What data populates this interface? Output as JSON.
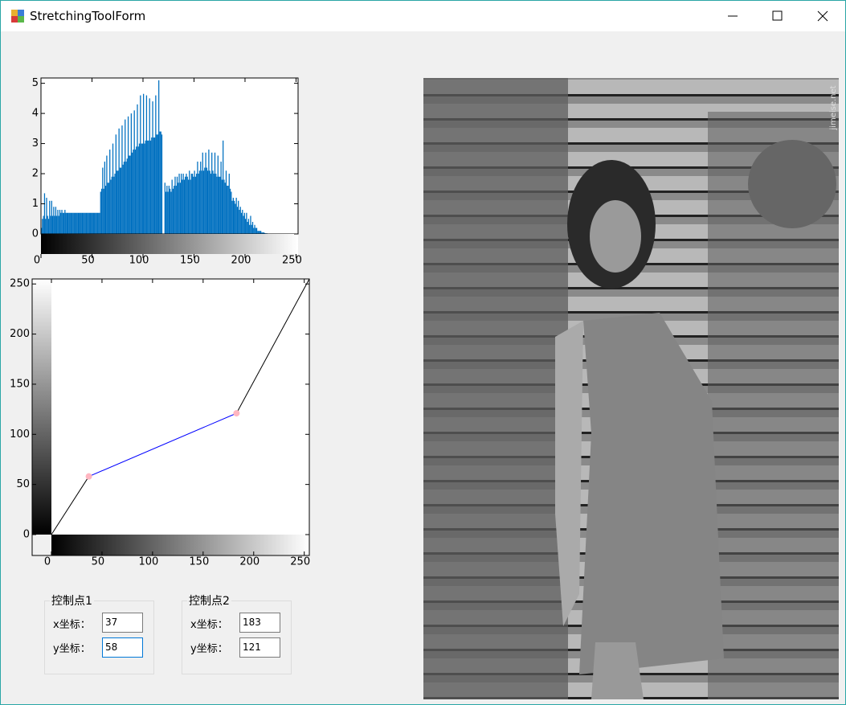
{
  "window": {
    "title": "StretchingToolForm"
  },
  "chart_data": [
    {
      "type": "bar",
      "color": "#0070c0",
      "xlim": [
        0,
        252
      ],
      "ylim": [
        0,
        5.15
      ],
      "xticks": [
        0,
        50,
        100,
        150,
        200,
        250
      ],
      "yticks": [
        0,
        1,
        2,
        3,
        4,
        5
      ],
      "x": [
        0,
        1,
        2,
        3,
        4,
        5,
        6,
        7,
        8,
        9,
        10,
        11,
        12,
        13,
        14,
        15,
        16,
        17,
        18,
        19,
        20,
        21,
        22,
        23,
        24,
        25,
        26,
        27,
        28,
        29,
        30,
        31,
        32,
        33,
        34,
        35,
        36,
        37,
        38,
        39,
        40,
        41,
        42,
        43,
        44,
        45,
        46,
        47,
        48,
        49,
        50,
        51,
        52,
        53,
        54,
        55,
        56,
        57,
        58,
        59,
        60,
        61,
        62,
        63,
        64,
        65,
        66,
        67,
        68,
        69,
        70,
        71,
        72,
        73,
        74,
        75,
        76,
        77,
        78,
        79,
        80,
        81,
        82,
        83,
        84,
        85,
        86,
        87,
        88,
        89,
        90,
        91,
        92,
        93,
        94,
        95,
        96,
        97,
        98,
        99,
        100,
        101,
        102,
        103,
        104,
        105,
        106,
        107,
        108,
        109,
        110,
        111,
        112,
        113,
        114,
        115,
        116,
        117,
        118,
        119,
        120,
        121,
        122,
        123,
        124,
        125,
        126,
        127,
        128,
        129,
        130,
        131,
        132,
        133,
        134,
        135,
        136,
        137,
        138,
        139,
        140,
        141,
        142,
        143,
        144,
        145,
        146,
        147,
        148,
        149,
        150,
        151,
        152,
        153,
        154,
        155,
        156,
        157,
        158,
        159,
        160,
        161,
        162,
        163,
        164,
        165,
        166,
        167,
        168,
        169,
        170,
        171,
        172,
        173,
        174,
        175,
        176,
        177,
        178,
        179,
        180,
        181,
        182,
        183,
        184,
        185,
        186,
        187,
        188,
        189,
        190,
        191,
        192,
        193,
        194,
        195,
        196,
        197,
        198,
        199,
        200,
        201,
        202,
        203,
        204,
        205,
        206,
        207,
        208,
        209,
        210,
        211,
        212,
        213,
        214,
        215,
        216,
        217,
        218,
        219,
        220,
        221,
        222,
        223,
        224,
        225,
        226,
        227,
        228,
        229,
        230,
        231,
        232,
        233,
        234,
        235,
        236,
        237,
        238,
        239,
        240,
        241,
        242,
        243,
        244,
        245,
        246,
        247,
        248,
        249,
        250,
        251,
        252,
        253,
        254,
        255
      ],
      "values": [
        0.2,
        0.5,
        0.6,
        1.35,
        0.5,
        1.2,
        0.6,
        0.5,
        1.1,
        0.6,
        1.1,
        0.6,
        0.9,
        0.6,
        0.9,
        0.6,
        0.8,
        0.6,
        0.8,
        0.7,
        0.8,
        0.7,
        0.7,
        0.8,
        0.7,
        0.7,
        0.7,
        0.7,
        0.7,
        0.7,
        0.7,
        0.7,
        0.7,
        0.7,
        0.7,
        0.7,
        0.7,
        0.7,
        0.7,
        0.7,
        0.7,
        0.7,
        0.7,
        0.7,
        0.7,
        0.7,
        0.7,
        0.7,
        0.7,
        0.7,
        0.7,
        0.7,
        0.7,
        0.7,
        0.7,
        0.7,
        0.7,
        0.7,
        1.4,
        1.5,
        2.2,
        1.5,
        2.4,
        1.6,
        2.6,
        1.7,
        1.7,
        2.8,
        1.8,
        1.9,
        3.0,
        1.9,
        2.0,
        3.3,
        2.1,
        2.1,
        3.5,
        2.2,
        2.2,
        3.6,
        2.3,
        2.4,
        3.8,
        2.4,
        2.5,
        3.9,
        2.6,
        2.6,
        4.0,
        2.7,
        2.8,
        4.1,
        2.8,
        2.9,
        4.3,
        2.9,
        3.0,
        4.6,
        3.0,
        3.0,
        4.65,
        3.0,
        3.1,
        4.6,
        3.1,
        3.1,
        4.5,
        3.1,
        3.2,
        4.4,
        3.2,
        3.2,
        4.6,
        3.3,
        3.3,
        5.1,
        3.4,
        3.4,
        3.3,
        0,
        0,
        1.7,
        1.4,
        1.6,
        1.4,
        1.6,
        1.5,
        1.4,
        1.8,
        1.5,
        1.6,
        1.9,
        1.6,
        1.9,
        1.7,
        2.0,
        1.7,
        2.0,
        1.8,
        2.0,
        1.8,
        1.9,
        2.0,
        1.9,
        1.8,
        2.1,
        1.8,
        2.0,
        2.0,
        1.9,
        2.1,
        1.9,
        2.0,
        2.4,
        2.0,
        2.1,
        2.4,
        2.1,
        2.7,
        2.1,
        2.2,
        2.7,
        2.2,
        2.1,
        2.8,
        2.1,
        2.0,
        2.7,
        2.1,
        2.0,
        2.7,
        2.0,
        1.9,
        2.6,
        1.9,
        1.9,
        2.4,
        1.8,
        3.1,
        1.8,
        1.7,
        2.1,
        1.6,
        1.6,
        2.0,
        1.5,
        1.4,
        1.1,
        1.2,
        1.1,
        1.0,
        1.2,
        0.9,
        1.1,
        0.8,
        0.9,
        0.7,
        0.8,
        0.6,
        0.7,
        0.5,
        0.7,
        0.4,
        0.5,
        0.3,
        0.6,
        0.3,
        0.4,
        0.2,
        0.3,
        0.2,
        0.2,
        0.1,
        0.1,
        0.1,
        0.1,
        0.05,
        0.05,
        0.05,
        0.03,
        0.02,
        0.02,
        0.01,
        0.01,
        0,
        0,
        0,
        0,
        0,
        0,
        0,
        0,
        0,
        0,
        0,
        0,
        0,
        0,
        0,
        0,
        0,
        0,
        0,
        0,
        0,
        0,
        0,
        0,
        0,
        0,
        0,
        0,
        0,
        0,
        0,
        0
      ]
    },
    {
      "type": "line",
      "xlim": [
        0,
        255
      ],
      "ylim": [
        0,
        255
      ],
      "xticks": [
        0,
        50,
        100,
        150,
        200,
        250
      ],
      "yticks": [
        0,
        50,
        100,
        150,
        200,
        250
      ],
      "x": [
        0,
        37,
        183,
        255
      ],
      "values": [
        0,
        58,
        121,
        255
      ],
      "segment_colors": [
        "#000000",
        "#0000ff",
        "#000000"
      ],
      "marker_color": "#ffb6c1"
    }
  ],
  "controls": [
    {
      "title": "控制点1",
      "x_label": "x坐标：",
      "y_label": "y坐标："
    },
    {
      "title": "控制点2",
      "x_label": "x坐标：",
      "y_label": "y坐标："
    }
  ],
  "image": {
    "watermark": "jimeise.net"
  }
}
